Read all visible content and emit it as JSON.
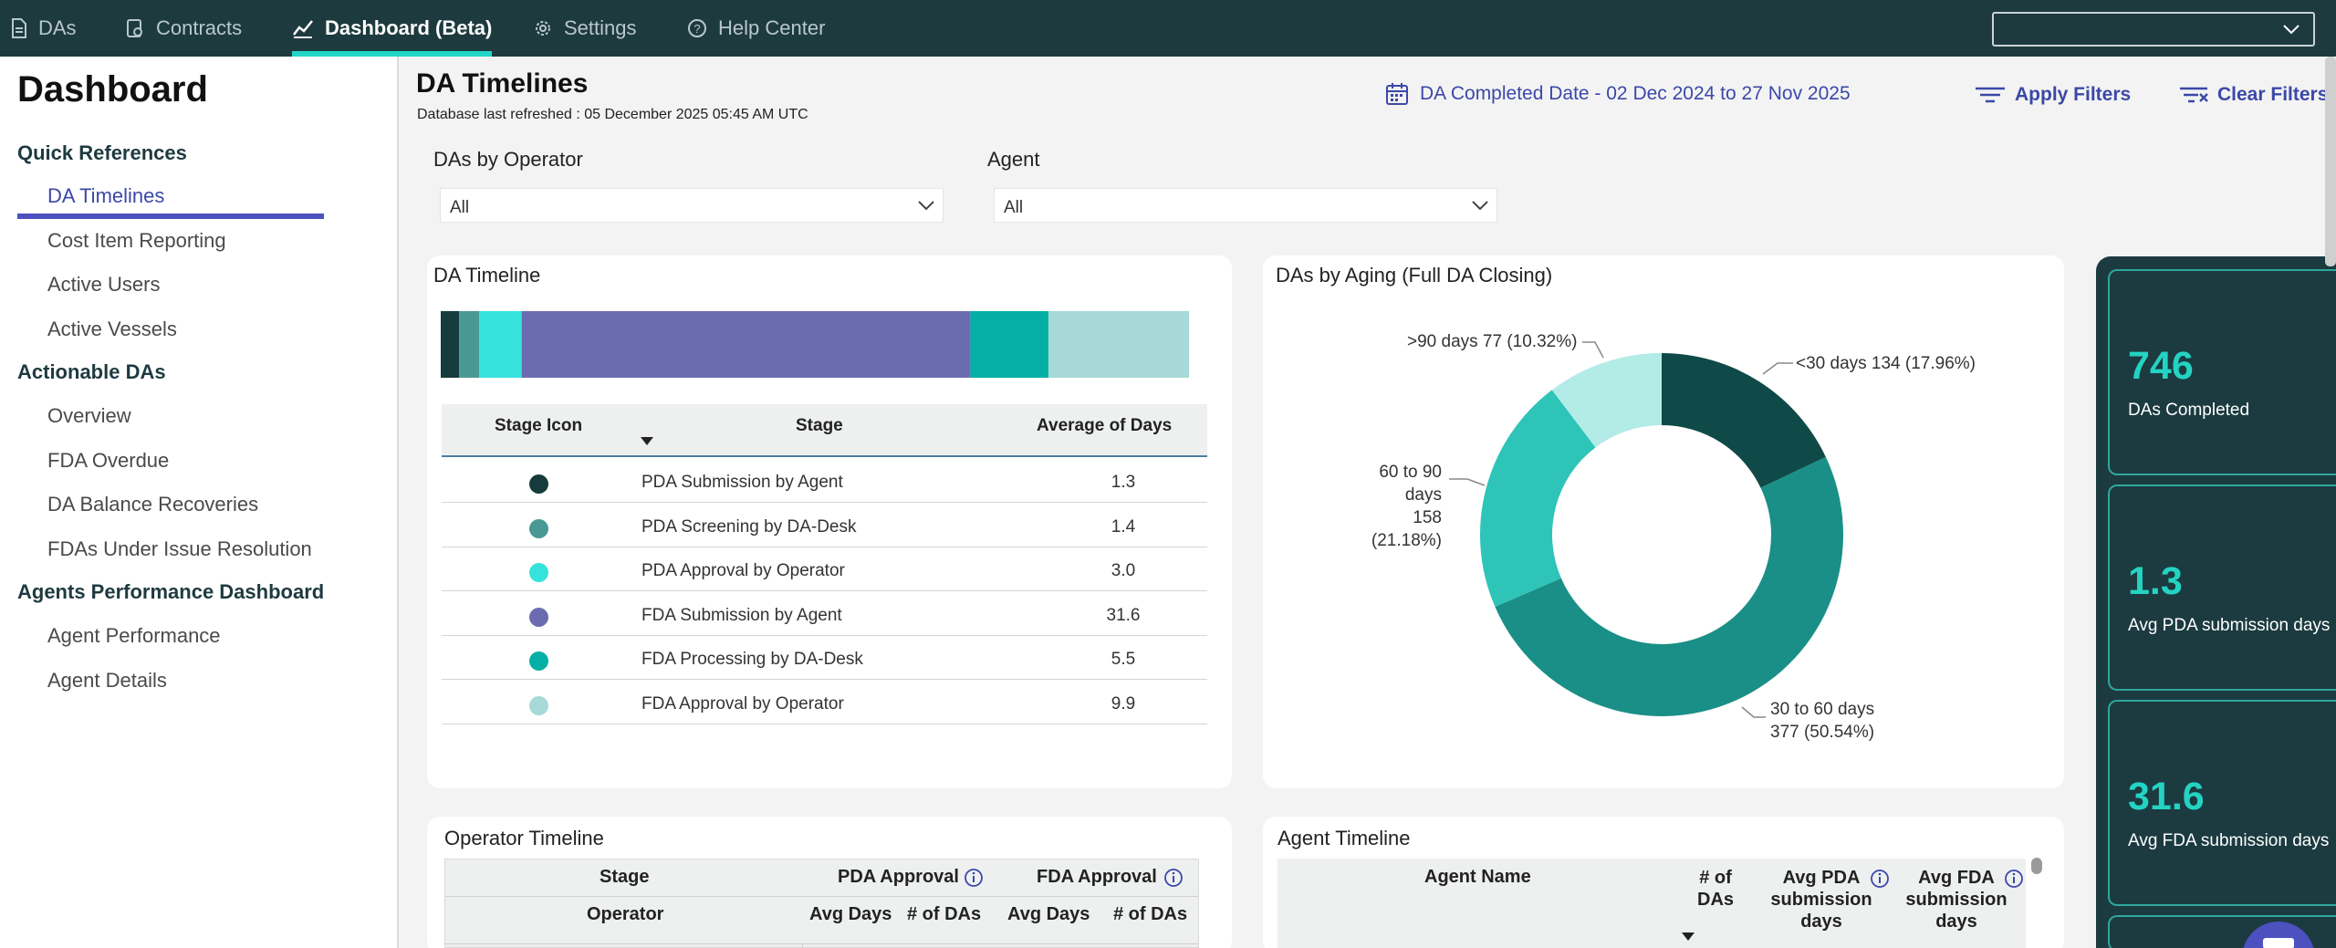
{
  "nav": {
    "tabs": [
      {
        "label": "DAs",
        "icon": "document-icon"
      },
      {
        "label": "Contracts",
        "icon": "contract-icon"
      },
      {
        "label": "Dashboard (Beta)",
        "icon": "chart-icon",
        "active": true
      },
      {
        "label": "Settings",
        "icon": "gear-icon"
      },
      {
        "label": "Help Center",
        "icon": "help-icon"
      }
    ],
    "select_value": ""
  },
  "sidebar": {
    "title": "Dashboard",
    "sections": [
      {
        "heading": "Quick References",
        "items": [
          "DA Timelines",
          "Cost Item Reporting",
          "Active Users",
          "Active Vessels"
        ]
      },
      {
        "heading": "Actionable DAs",
        "items": [
          "Overview",
          "FDA Overdue",
          "DA Balance Recoveries",
          "FDAs Under Issue Resolution"
        ]
      },
      {
        "heading": "Agents Performance Dashboard",
        "items": [
          "Agent Performance",
          "Agent Details"
        ]
      }
    ],
    "active_item": "DA Timelines"
  },
  "header": {
    "title": "DA Timelines",
    "refresh_label": "Database last refreshed :",
    "refresh_value": "05 December 2025 05:45 AM UTC",
    "date_filter": "DA Completed Date - 02 Dec 2024 to 27 Nov 2025",
    "apply_filters": "Apply Filters",
    "clear_filters": "Clear Filters"
  },
  "filters": {
    "operator": {
      "label": "DAs by Operator",
      "value": "All"
    },
    "agent": {
      "label": "Agent",
      "value": "All"
    }
  },
  "da_timeline": {
    "title": "DA Timeline",
    "columns": [
      "Stage Icon",
      "Stage",
      "Average of Days"
    ],
    "rows": [
      {
        "stage": "PDA Submission by Agent",
        "avg": "1.3",
        "color": "#163b3d"
      },
      {
        "stage": "PDA Screening by DA-Desk",
        "avg": "1.4",
        "color": "#4a9893"
      },
      {
        "stage": "PDA Approval by Operator",
        "avg": "3.0",
        "color": "#36e3dc"
      },
      {
        "stage": "FDA Submission by Agent",
        "avg": "31.6",
        "color": "#6b6caf"
      },
      {
        "stage": "FDA Processing by DA-Desk",
        "avg": "5.5",
        "color": "#04afa5"
      },
      {
        "stage": "FDA Approval by Operator",
        "avg": "9.9",
        "color": "#a6d9d8"
      }
    ]
  },
  "chart_data": [
    {
      "type": "bar",
      "orientation": "horizontal-stacked",
      "categories": [
        "PDA Submission by Agent",
        "PDA Screening by DA-Desk",
        "PDA Approval by Operator",
        "FDA Submission by Agent",
        "FDA Processing by DA-Desk",
        "FDA Approval by Operator"
      ],
      "values": [
        1.3,
        1.4,
        3.0,
        31.6,
        5.5,
        9.9
      ],
      "colors": [
        "#163b3d",
        "#4a9893",
        "#36e3dc",
        "#6b6caf",
        "#04afa5",
        "#a6d9d8"
      ],
      "title": "DA Timeline"
    },
    {
      "type": "pie",
      "donut": true,
      "title": "DAs by Aging (Full DA Closing)",
      "categories": [
        "<30 days",
        "30 to 60 days",
        "60 to 90 days",
        ">90 days"
      ],
      "values": [
        134,
        377,
        158,
        77
      ],
      "percents": [
        "17.96%",
        "50.54%",
        "21.18%",
        "10.32%"
      ],
      "colors": [
        "#0f4a48",
        "#1a8f87",
        "#2ec4b8",
        "#b3ebe6"
      ],
      "labels": [
        {
          "line1": "<30 days 134 (17.96%)",
          "line2": ""
        },
        {
          "line1": "30 to 60 days",
          "line2": "377 (50.54%)"
        },
        {
          "line1": "60 to 90 days",
          "line2": "158 (21.18%)"
        },
        {
          "line1": ">90 days 77 (10.32%)",
          "line2": ""
        }
      ]
    }
  ],
  "aging": {
    "title": "DAs by Aging (Full DA Closing)"
  },
  "kpis": [
    {
      "value": "746",
      "label": "DAs Completed"
    },
    {
      "value": "1.3",
      "label": "Avg PDA submission days"
    },
    {
      "value": "31.6",
      "label": "Avg FDA submission days"
    }
  ],
  "operator_timeline": {
    "title": "Operator Timeline",
    "stage_label": "Stage",
    "pda_approval": "PDA Approval",
    "fda_approval": "FDA Approval",
    "operator_label": "Operator",
    "avg_days": "Avg Days",
    "num_das": "# of DAs"
  },
  "agent_timeline": {
    "title": "Agent Timeline",
    "agent_name": "Agent Name",
    "num_das_1": "# of",
    "num_das_2": "DAs",
    "avg_pda_1": "Avg PDA",
    "avg_pda_2": "submission",
    "avg_pda_3": "days",
    "avg_fda_1": "Avg FDA",
    "avg_fda_2": "submission",
    "avg_fda_3": "days"
  }
}
